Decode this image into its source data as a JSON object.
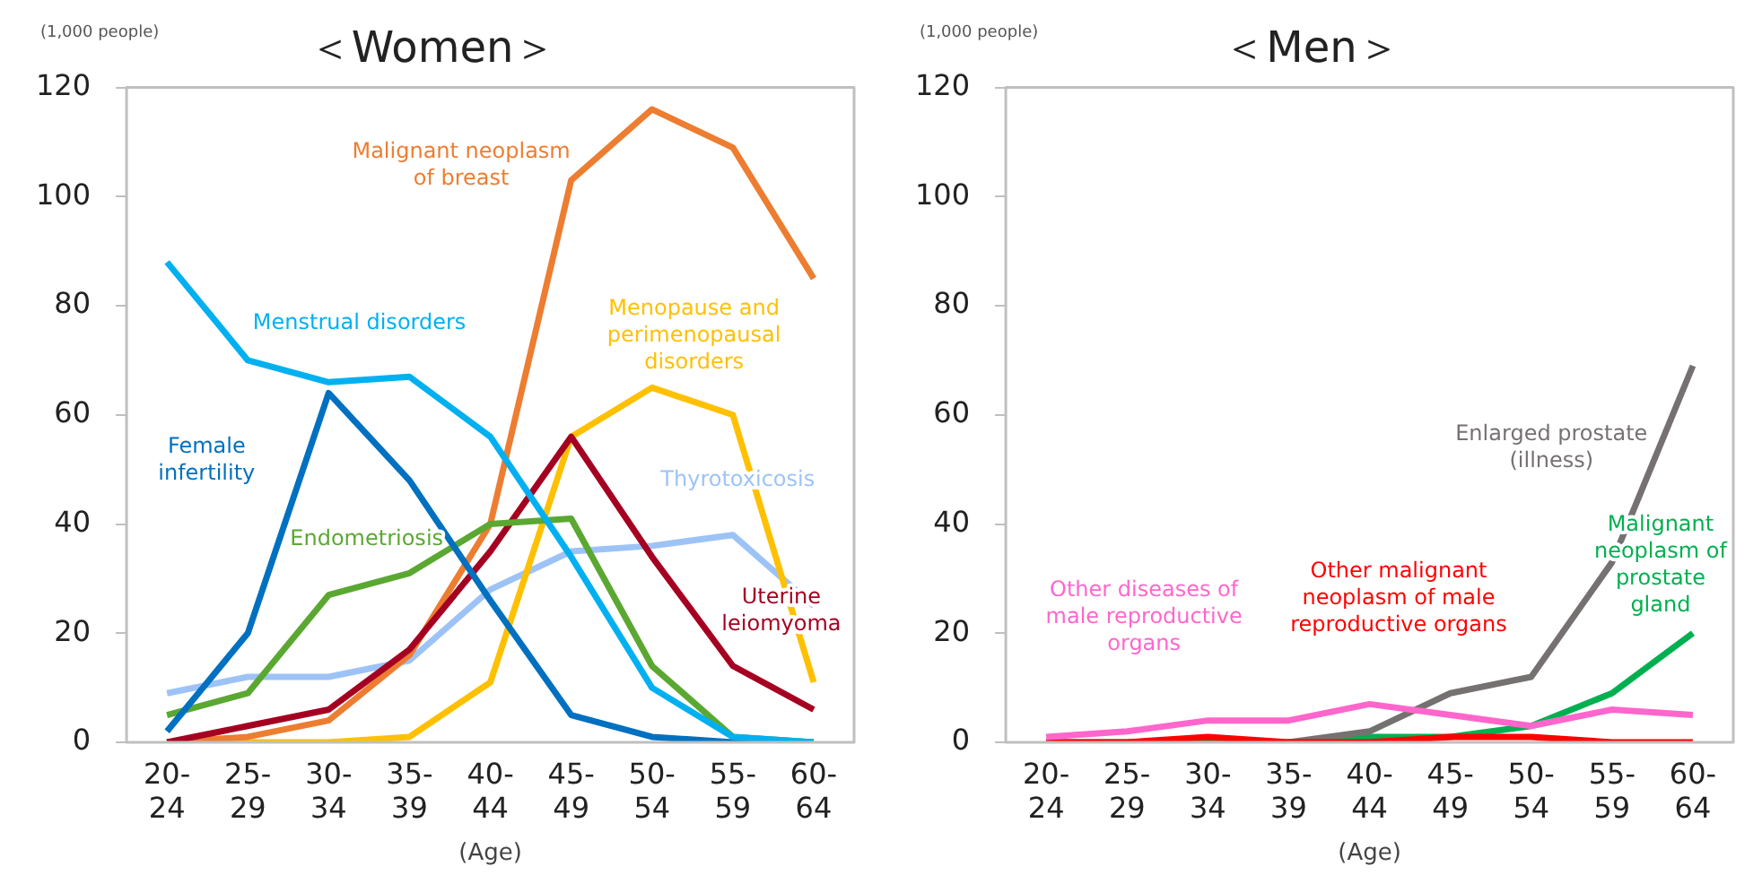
{
  "chart_data": [
    {
      "type": "line",
      "title": "＜Women＞",
      "ylabel": "(1,000 people)",
      "xlabel": "(Age)",
      "categories": [
        "20-24",
        "25-29",
        "30-34",
        "35-39",
        "40-44",
        "45-49",
        "50-54",
        "55-59",
        "60-64"
      ],
      "ylim": [
        0,
        120
      ],
      "yticks": [
        0,
        20,
        40,
        60,
        80,
        100,
        120
      ],
      "grid": false,
      "legend": false,
      "marker": "none",
      "series": [
        {
          "name": "Menstrual disorders",
          "color": "#00b0f0",
          "values": [
            88,
            70,
            66,
            67,
            56,
            34,
            10,
            1,
            0
          ]
        },
        {
          "name": "Female infertility",
          "color": "#0070c0",
          "values": [
            2,
            20,
            64,
            48,
            26,
            5,
            1,
            0,
            0
          ]
        },
        {
          "name": "Endometriosis",
          "color": "#5aa832",
          "values": [
            5,
            9,
            27,
            31,
            40,
            41,
            14,
            1,
            0
          ]
        },
        {
          "name": "Uterine leiomyoma",
          "color": "#a50021",
          "values": [
            0,
            3,
            6,
            17,
            35,
            56,
            34,
            14,
            6
          ]
        },
        {
          "name": "Malignant neoplasm of breast",
          "color": "#ed7d31",
          "values": [
            0,
            1,
            4,
            16,
            40,
            103,
            116,
            109,
            85
          ]
        },
        {
          "name": "Menopause and perimenopausal disorders",
          "color": "#ffc000",
          "values": [
            0,
            0,
            0,
            1,
            11,
            56,
            65,
            60,
            11
          ]
        },
        {
          "name": "Thyrotoxicosis",
          "color": "#9dc3f6",
          "values": [
            9,
            12,
            12,
            15,
            28,
            35,
            36,
            38,
            25
          ]
        }
      ]
    },
    {
      "type": "line",
      "title": "＜Men＞",
      "ylabel": "(1,000 people)",
      "xlabel": "(Age)",
      "categories": [
        "20-24",
        "25-29",
        "30-34",
        "35-39",
        "40-44",
        "45-49",
        "50-54",
        "55-59",
        "60-64"
      ],
      "ylim": [
        0,
        120
      ],
      "yticks": [
        0,
        20,
        40,
        60,
        80,
        100,
        120
      ],
      "grid": false,
      "legend": false,
      "marker": "none",
      "series": [
        {
          "name": "Other diseases of male reproductive organs",
          "color": "#ff66cc",
          "values": [
            1,
            2,
            4,
            4,
            7,
            5,
            3,
            6,
            5
          ]
        },
        {
          "name": "Other malignant neoplasm of male reproductive organs",
          "color": "#ff0000",
          "values": [
            0,
            0,
            1,
            0,
            0,
            1,
            1,
            0,
            0
          ]
        },
        {
          "name": "Enlarged prostate (illness)",
          "color": "#767171",
          "values": [
            null,
            null,
            null,
            0,
            2,
            9,
            12,
            33,
            69
          ]
        },
        {
          "name": "Malignant neoplasm of prostate gland",
          "color": "#00b050",
          "values": [
            0,
            0,
            0,
            0,
            1,
            1,
            3,
            9,
            20
          ]
        }
      ]
    }
  ]
}
